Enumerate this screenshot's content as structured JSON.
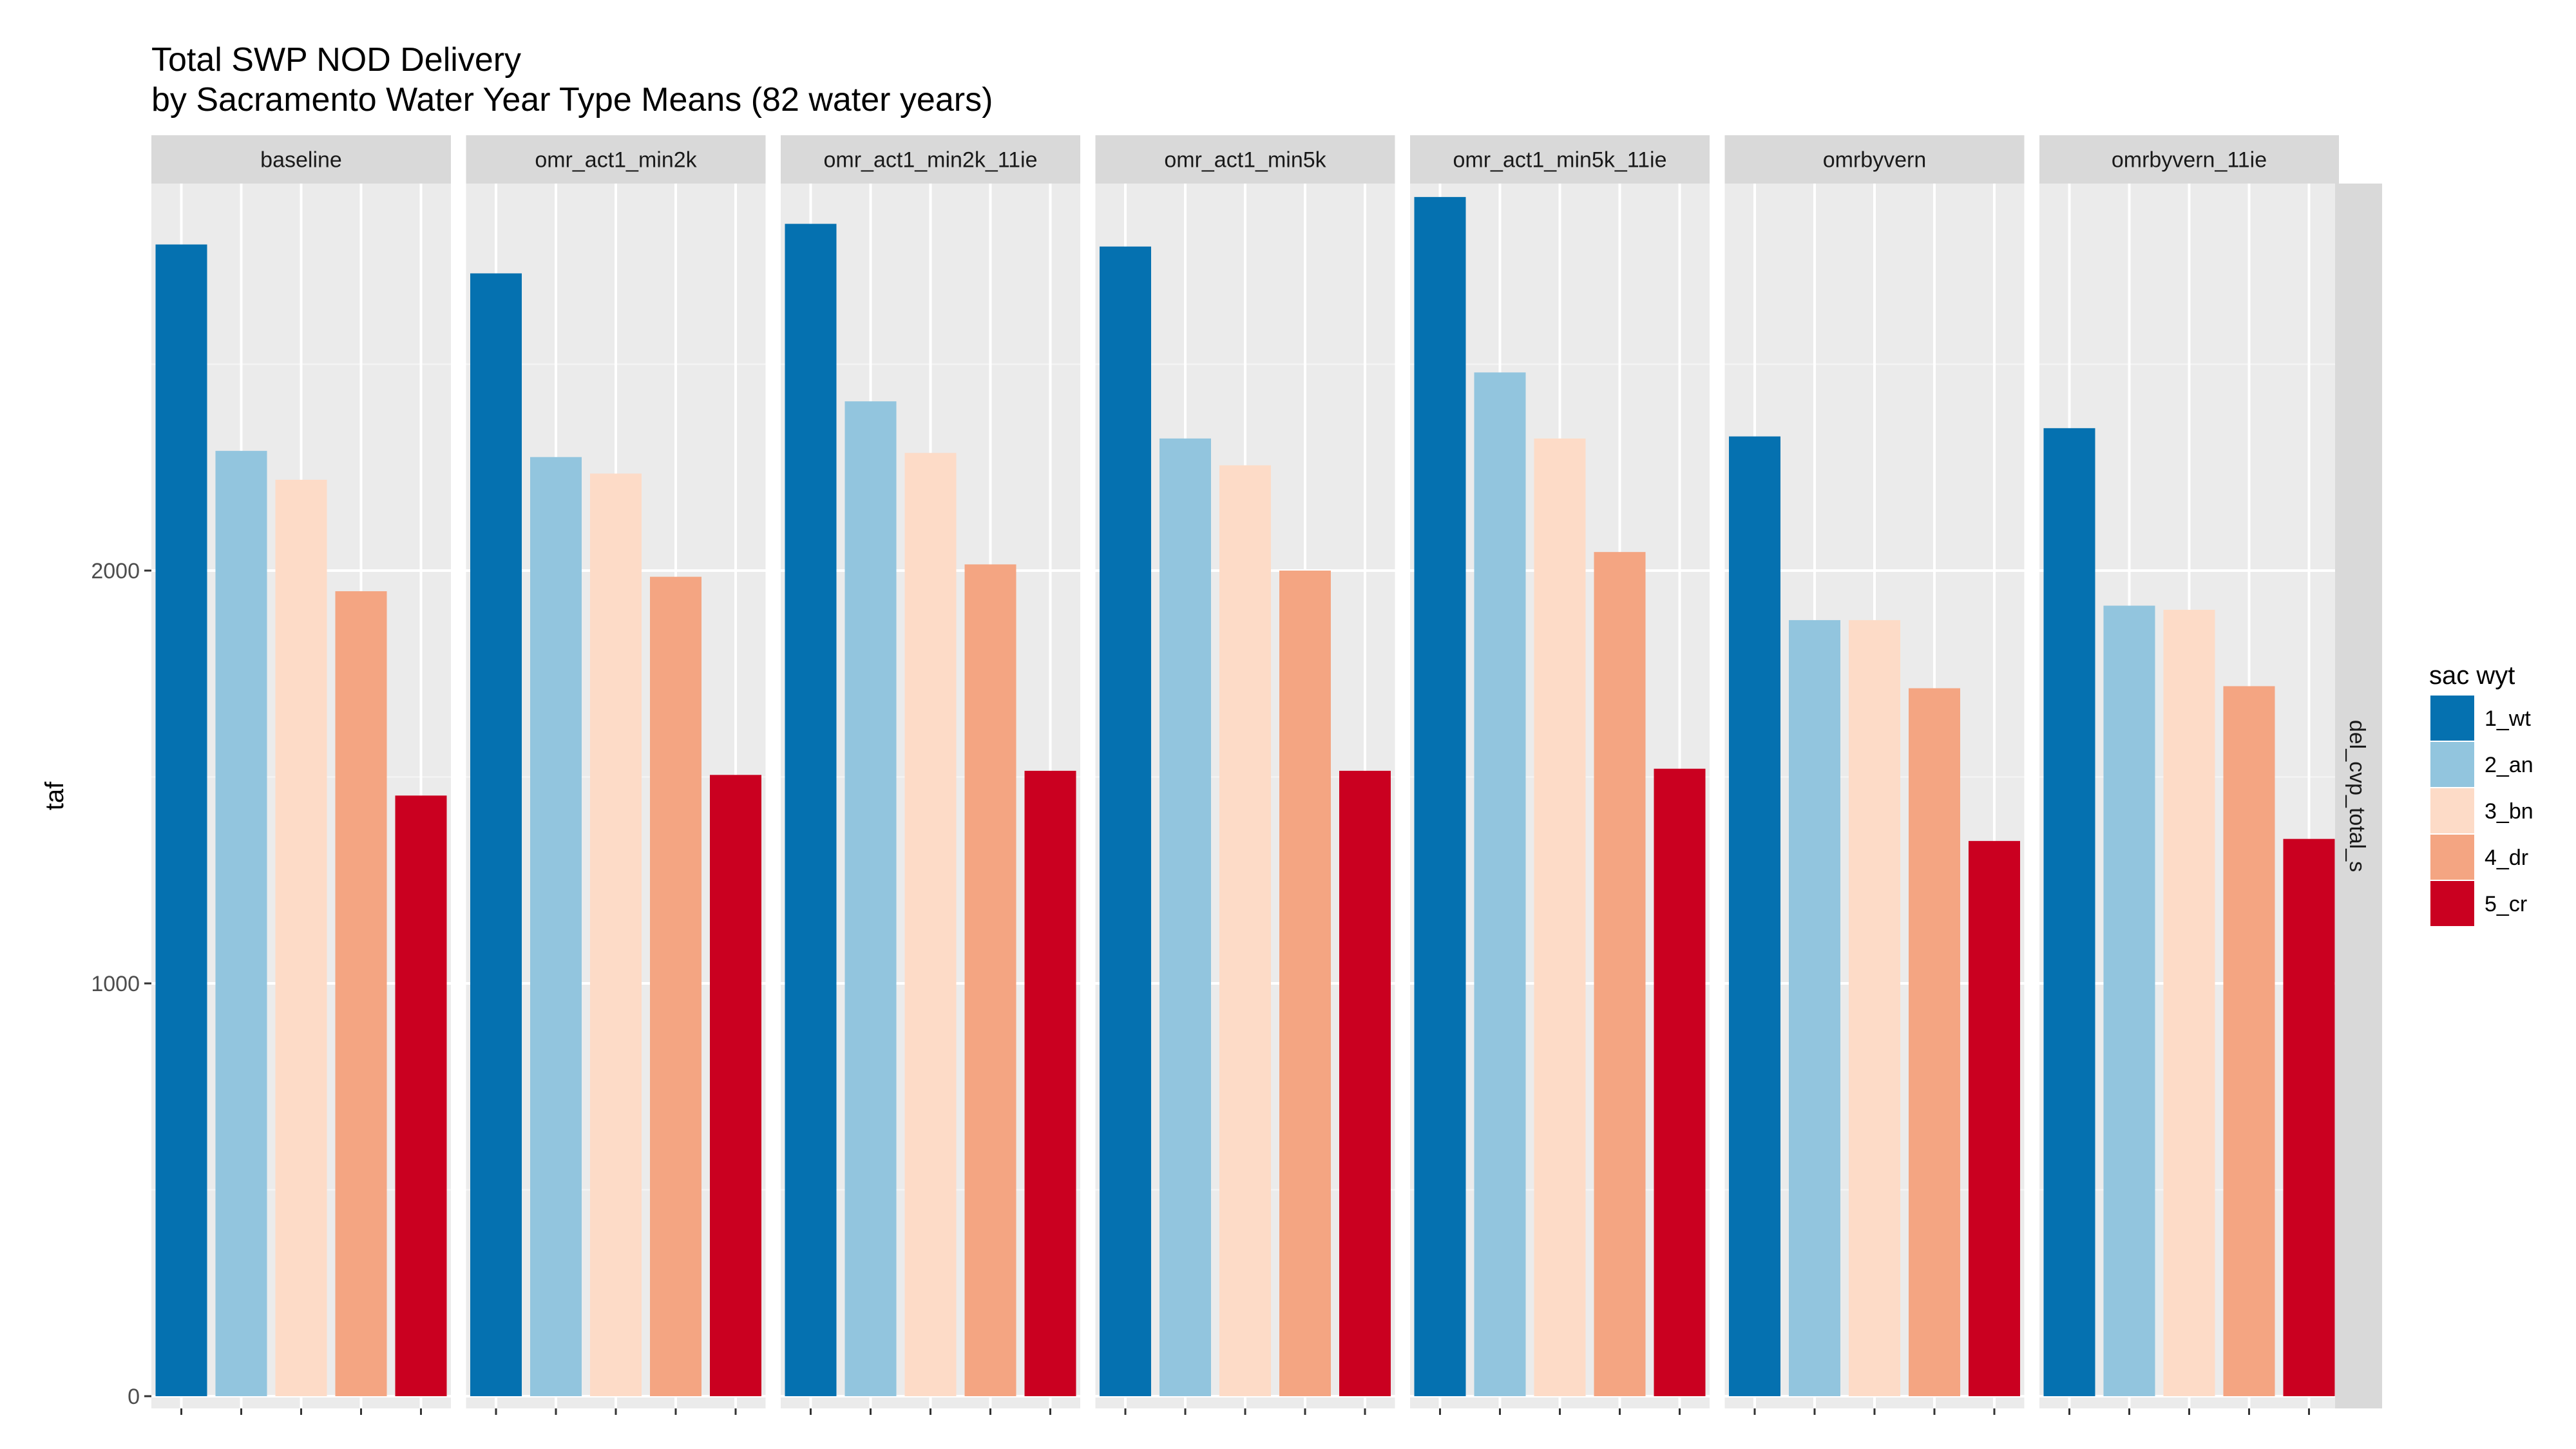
{
  "chart_data": {
    "type": "bar",
    "title": "Total SWP NOD Delivery",
    "subtitle": "by Sacramento Water Year Type Means (82 water years)",
    "ylabel": "taf",
    "xlabel": "",
    "ylim": [
      0,
      2900
    ],
    "yticks": [
      0,
      1000,
      2000
    ],
    "grid": true,
    "facet_row_label": "del_cvp_total_s",
    "legend": {
      "title": "sac wyt",
      "placement": "right",
      "entries": [
        "1_wt",
        "2_an",
        "3_bn",
        "4_dr",
        "5_cr"
      ]
    },
    "colors": {
      "1_wt": "#0571b0",
      "2_an": "#92c5de",
      "3_bn": "#fddbc7",
      "4_dr": "#f4a582",
      "5_cr": "#ca0020"
    },
    "categories": [
      "1_wt",
      "2_an",
      "3_bn",
      "4_dr",
      "5_cr"
    ],
    "facets": [
      {
        "name": "baseline",
        "values": [
          2790,
          2290,
          2220,
          1950,
          1455
        ]
      },
      {
        "name": "omr_act1_min2k",
        "values": [
          2720,
          2275,
          2235,
          1985,
          1505
        ]
      },
      {
        "name": "omr_act1_min2k_11ie",
        "values": [
          2840,
          2410,
          2285,
          2015,
          1515
        ]
      },
      {
        "name": "omr_act1_min5k",
        "values": [
          2785,
          2320,
          2255,
          2000,
          1515
        ]
      },
      {
        "name": "omr_act1_min5k_11ie",
        "values": [
          2905,
          2480,
          2320,
          2045,
          1520
        ]
      },
      {
        "name": "omrbyvern",
        "values": [
          2325,
          1880,
          1880,
          1715,
          1345
        ]
      },
      {
        "name": "omrbyvern_11ie",
        "values": [
          2345,
          1915,
          1905,
          1720,
          1350
        ]
      }
    ]
  }
}
